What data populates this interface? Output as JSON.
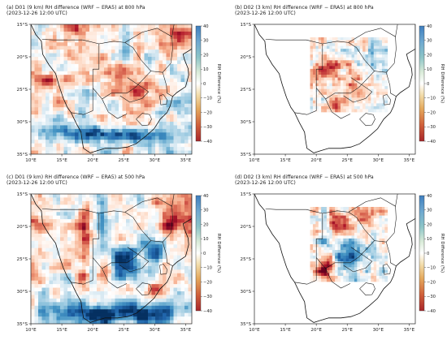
{
  "chart_data": [
    {
      "type": "heatmap",
      "title": "(a) D01 (9 km) RH difference (WRF − ERA5) at 800 hPa",
      "subtitle": "(2023-12-26 12:00 UTC)",
      "domain": "D01",
      "field": "a800",
      "x_ticks": [
        "10°E",
        "15°E",
        "20°E",
        "25°E",
        "30°E",
        "35°E"
      ],
      "y_ticks": [
        "15°S",
        "20°S",
        "25°S",
        "30°S",
        "35°S"
      ],
      "xlim": [
        10,
        36
      ],
      "ylim": [
        -35,
        -15
      ],
      "colorbar_label": "RH Difference (%)",
      "colorbar_ticks": [
        "40",
        "30",
        "20",
        "10",
        "0",
        "−10",
        "−20",
        "−30",
        "−40"
      ],
      "vmin": -40,
      "vmax": 40
    },
    {
      "type": "heatmap",
      "title": "(b) D02 (3 km) RH difference (WRF − ERA5) at 800 hPa",
      "subtitle": "(2023-12-26 12:00 UTC)",
      "domain": "D02",
      "field": "b800",
      "x_ticks": [
        "10°E",
        "15°E",
        "20°E",
        "25°E",
        "30°E",
        "35°E"
      ],
      "y_ticks": [
        "15°S",
        "20°S",
        "25°S",
        "30°S",
        "35°S"
      ],
      "xlim": [
        10,
        36
      ],
      "ylim": [
        -35,
        -15
      ],
      "colorbar_label": "RH Difference (%)",
      "colorbar_ticks": [
        "40",
        "30",
        "20",
        "10",
        "0",
        "−10",
        "−20",
        "−30",
        "−40"
      ],
      "vmin": -40,
      "vmax": 40
    },
    {
      "type": "heatmap",
      "title": "(c) D01 (9 km) RH difference (WRF − ERA5) at 500 hPa",
      "subtitle": "(2023-12-26 12:00 UTC)",
      "domain": "D01",
      "field": "c500",
      "x_ticks": [
        "10°E",
        "15°E",
        "20°E",
        "25°E",
        "30°E",
        "35°E"
      ],
      "y_ticks": [
        "15°S",
        "20°S",
        "25°S",
        "30°S",
        "35°S"
      ],
      "xlim": [
        10,
        36
      ],
      "ylim": [
        -35,
        -15
      ],
      "colorbar_label": "RH Difference (%)",
      "colorbar_ticks": [
        "40",
        "30",
        "20",
        "10",
        "0",
        "−10",
        "−20",
        "−30",
        "−40"
      ],
      "vmin": -40,
      "vmax": 40
    },
    {
      "type": "heatmap",
      "title": "(d) D02 (3 km) RH difference (WRF − ERA5) at 500 hPa",
      "subtitle": "(2023-12-26 12:00 UTC)",
      "domain": "D02",
      "field": "d500",
      "x_ticks": [
        "10°E",
        "15°E",
        "20°E",
        "25°E",
        "30°E",
        "35°E"
      ],
      "y_ticks": [
        "15°S",
        "20°S",
        "25°S",
        "30°S",
        "35°S"
      ],
      "xlim": [
        10,
        36
      ],
      "ylim": [
        -35,
        -15
      ],
      "colorbar_label": "RH Difference (%)",
      "colorbar_ticks": [
        "40",
        "30",
        "20",
        "10",
        "0",
        "−10",
        "−20",
        "−30",
        "−40"
      ],
      "vmin": -40,
      "vmax": 40
    }
  ],
  "colors": {
    "diverging": [
      "#67001f",
      "#b2182b",
      "#d6604d",
      "#f4a582",
      "#fddbc7",
      "#ffffff",
      "#d1e5f0",
      "#92c5de",
      "#4393c3",
      "#2166ac",
      "#053061"
    ],
    "colorbar": [
      "#4a8fc4",
      "#7fb3cf",
      "#a9d5c9",
      "#e6eed2",
      "#ffffff",
      "#f1e0b6",
      "#e5b96c",
      "#d8743e",
      "#b43228"
    ],
    "coastline": "#111111"
  }
}
